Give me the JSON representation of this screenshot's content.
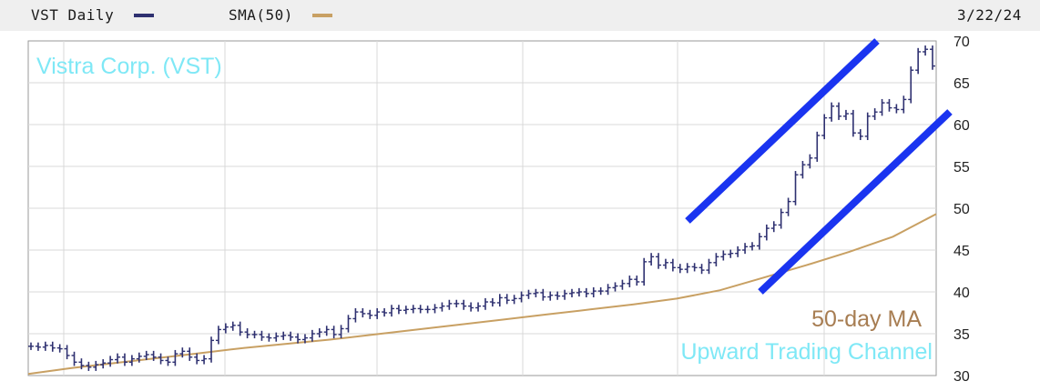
{
  "legend": {
    "series_label": "VST Daily",
    "sma_label": "SMA(50)",
    "date": "3/22/24",
    "series_color": "#2e3070",
    "sma_color": "#c8a063"
  },
  "chart_data": {
    "type": "line",
    "title": "Vistra Corp. (VST)",
    "ylim": [
      30,
      70
    ],
    "yticks": [
      "70",
      "65",
      "60",
      "55",
      "50",
      "45",
      "40",
      "35",
      "30"
    ],
    "grid": true,
    "series": [
      {
        "name": "VST Daily",
        "color": "#2e3070",
        "values": [
          33.5,
          33.4,
          33.6,
          33.3,
          33.2,
          32.4,
          31.6,
          31.2,
          31.0,
          31.3,
          31.5,
          31.9,
          32.2,
          31.6,
          32.0,
          32.3,
          32.5,
          32.2,
          31.8,
          31.6,
          32.6,
          32.9,
          32.2,
          31.8,
          32.0,
          34.2,
          35.5,
          35.8,
          36.0,
          35.2,
          34.9,
          34.9,
          34.6,
          34.5,
          34.7,
          34.8,
          34.6,
          34.3,
          34.5,
          35.0,
          35.2,
          35.5,
          34.9,
          35.6,
          36.8,
          37.6,
          37.4,
          37.2,
          37.6,
          37.5,
          38.0,
          37.8,
          37.9,
          38.0,
          37.9,
          37.9,
          38.1,
          38.3,
          38.6,
          38.6,
          38.3,
          38.1,
          38.3,
          38.8,
          38.7,
          39.3,
          39.0,
          39.2,
          39.6,
          39.8,
          39.9,
          39.4,
          39.6,
          39.5,
          39.8,
          39.9,
          40.0,
          39.8,
          40.1,
          40.1,
          40.5,
          40.7,
          41.0,
          41.5,
          41.2,
          43.6,
          44.2,
          43.2,
          43.5,
          42.9,
          42.7,
          43.0,
          42.9,
          42.6,
          43.5,
          44.2,
          44.5,
          44.6,
          45.0,
          45.4,
          45.5,
          46.6,
          47.6,
          48.0,
          49.5,
          50.8,
          54.0,
          55.2,
          56.0,
          58.7,
          60.8,
          62.2,
          61.0,
          61.3,
          59.0,
          58.6,
          61.0,
          61.5,
          62.6,
          62.0,
          61.8,
          63.0,
          66.5,
          68.7,
          69.0,
          67.0
        ]
      },
      {
        "name": "SMA(50)",
        "color": "#c8a063",
        "values": [
          30.2,
          30.9,
          31.5,
          32.1,
          32.7,
          33.3,
          33.8,
          34.3,
          34.9,
          35.5,
          36.1,
          36.7,
          37.3,
          37.9,
          38.5,
          39.2,
          40.2,
          41.7,
          43.2,
          44.8,
          46.6,
          49.3
        ]
      }
    ],
    "annotations": [
      {
        "text": "50-day MA",
        "color": "#a77d52"
      },
      {
        "text": "Upward Trading Channel",
        "color": "#7fe8f6"
      }
    ],
    "channel_color": "#1a34f0"
  }
}
